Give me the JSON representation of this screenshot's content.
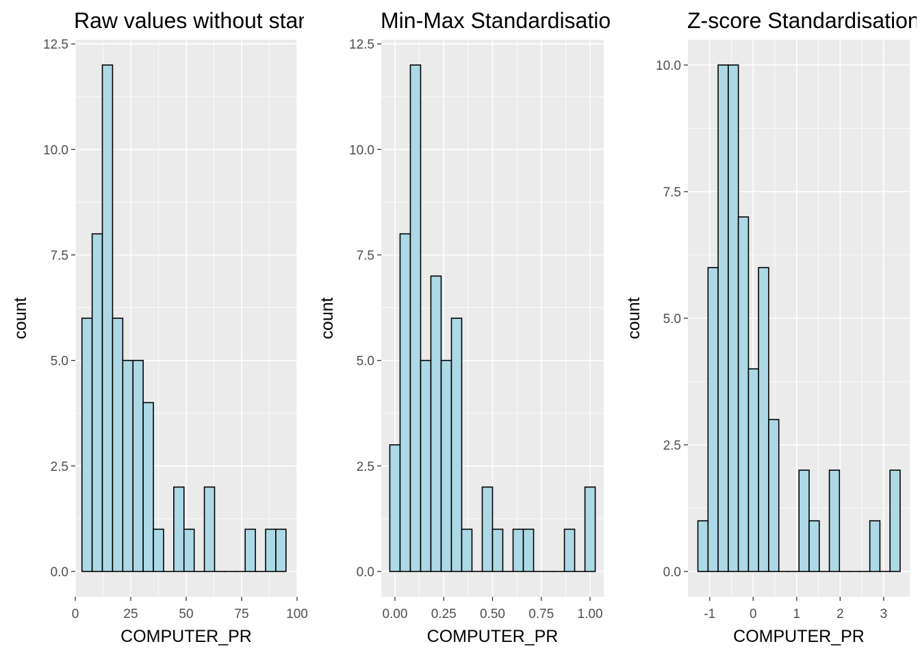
{
  "chart_data": [
    {
      "type": "histogram",
      "title": "Raw values without standardisation",
      "xlabel": "COMPUTER_PR",
      "ylabel": "count",
      "xlim": [
        0,
        100
      ],
      "ylim": [
        -0.6,
        12.6
      ],
      "x_ticks": [
        0,
        25,
        50,
        75,
        100
      ],
      "x_tick_labels": [
        "0",
        "25",
        "50",
        "75",
        "100"
      ],
      "y_ticks": [
        0,
        2.5,
        5,
        7.5,
        10,
        12.5
      ],
      "y_tick_labels": [
        "0.0",
        "2.5",
        "5.0",
        "7.5",
        "10.0",
        "12.5"
      ],
      "bin_width": 4.6,
      "bins": [
        {
          "x": 5.3,
          "count": 6
        },
        {
          "x": 9.9,
          "count": 8
        },
        {
          "x": 14.5,
          "count": 12
        },
        {
          "x": 19.1,
          "count": 6
        },
        {
          "x": 23.7,
          "count": 5
        },
        {
          "x": 28.3,
          "count": 5
        },
        {
          "x": 32.9,
          "count": 4
        },
        {
          "x": 37.5,
          "count": 1
        },
        {
          "x": 42.1,
          "count": 0
        },
        {
          "x": 46.7,
          "count": 2
        },
        {
          "x": 51.3,
          "count": 1
        },
        {
          "x": 55.9,
          "count": 0
        },
        {
          "x": 60.5,
          "count": 2
        },
        {
          "x": 65.1,
          "count": 0
        },
        {
          "x": 69.7,
          "count": 0
        },
        {
          "x": 74.3,
          "count": 0
        },
        {
          "x": 78.9,
          "count": 1
        },
        {
          "x": 83.5,
          "count": 0
        },
        {
          "x": 88.1,
          "count": 1
        },
        {
          "x": 92.7,
          "count": 1
        }
      ],
      "fill": "#ADD8E6"
    },
    {
      "type": "histogram",
      "title": "Min-Max Standardisation",
      "xlabel": "COMPUTER_PR",
      "ylabel": "count",
      "xlim": [
        -0.07,
        1.07
      ],
      "ylim": [
        -0.6,
        12.6
      ],
      "x_ticks": [
        0,
        0.25,
        0.5,
        0.75,
        1.0
      ],
      "x_tick_labels": [
        "0.00",
        "0.25",
        "0.50",
        "0.75",
        "1.00"
      ],
      "y_ticks": [
        0,
        2.5,
        5,
        7.5,
        10,
        12.5
      ],
      "y_tick_labels": [
        "0.0",
        "2.5",
        "5.0",
        "7.5",
        "10.0",
        "12.5"
      ],
      "bin_width": 0.0526,
      "bins": [
        {
          "x": 0.0,
          "count": 3
        },
        {
          "x": 0.0526,
          "count": 8
        },
        {
          "x": 0.1053,
          "count": 12
        },
        {
          "x": 0.1579,
          "count": 5
        },
        {
          "x": 0.2105,
          "count": 7
        },
        {
          "x": 0.2632,
          "count": 5
        },
        {
          "x": 0.3158,
          "count": 6
        },
        {
          "x": 0.3684,
          "count": 1
        },
        {
          "x": 0.4211,
          "count": 0
        },
        {
          "x": 0.4737,
          "count": 2
        },
        {
          "x": 0.5263,
          "count": 1
        },
        {
          "x": 0.5789,
          "count": 0
        },
        {
          "x": 0.6316,
          "count": 1
        },
        {
          "x": 0.6842,
          "count": 1
        },
        {
          "x": 0.7368,
          "count": 0
        },
        {
          "x": 0.7895,
          "count": 0
        },
        {
          "x": 0.8421,
          "count": 0
        },
        {
          "x": 0.8947,
          "count": 1
        },
        {
          "x": 0.9474,
          "count": 0
        },
        {
          "x": 1.0,
          "count": 2
        }
      ],
      "fill": "#ADD8E6"
    },
    {
      "type": "histogram",
      "title": "Z-score Standardisation",
      "xlabel": "COMPUTER_PR",
      "ylabel": "count",
      "xlim": [
        -1.5,
        3.6
      ],
      "ylim": [
        -0.5,
        10.5
      ],
      "x_ticks": [
        -1,
        0,
        1,
        2,
        3
      ],
      "x_tick_labels": [
        "-1",
        "0",
        "1",
        "2",
        "3"
      ],
      "y_ticks": [
        0,
        2.5,
        5,
        7.5,
        10
      ],
      "y_tick_labels": [
        "0.0",
        "2.5",
        "5.0",
        "7.5",
        "10.0"
      ],
      "bin_width": 0.2325,
      "bins": [
        {
          "x": -1.155,
          "count": 1
        },
        {
          "x": -0.922,
          "count": 6
        },
        {
          "x": -0.69,
          "count": 10
        },
        {
          "x": -0.457,
          "count": 10
        },
        {
          "x": -0.225,
          "count": 7
        },
        {
          "x": 0.008,
          "count": 4
        },
        {
          "x": 0.24,
          "count": 6
        },
        {
          "x": 0.473,
          "count": 3
        },
        {
          "x": 0.705,
          "count": 0
        },
        {
          "x": 0.938,
          "count": 0
        },
        {
          "x": 1.17,
          "count": 2
        },
        {
          "x": 1.403,
          "count": 1
        },
        {
          "x": 1.635,
          "count": 0
        },
        {
          "x": 1.868,
          "count": 2
        },
        {
          "x": 2.1,
          "count": 0
        },
        {
          "x": 2.333,
          "count": 0
        },
        {
          "x": 2.565,
          "count": 0
        },
        {
          "x": 2.798,
          "count": 1
        },
        {
          "x": 3.03,
          "count": 0
        },
        {
          "x": 3.263,
          "count": 2
        }
      ],
      "fill": "#ADD8E6"
    }
  ]
}
